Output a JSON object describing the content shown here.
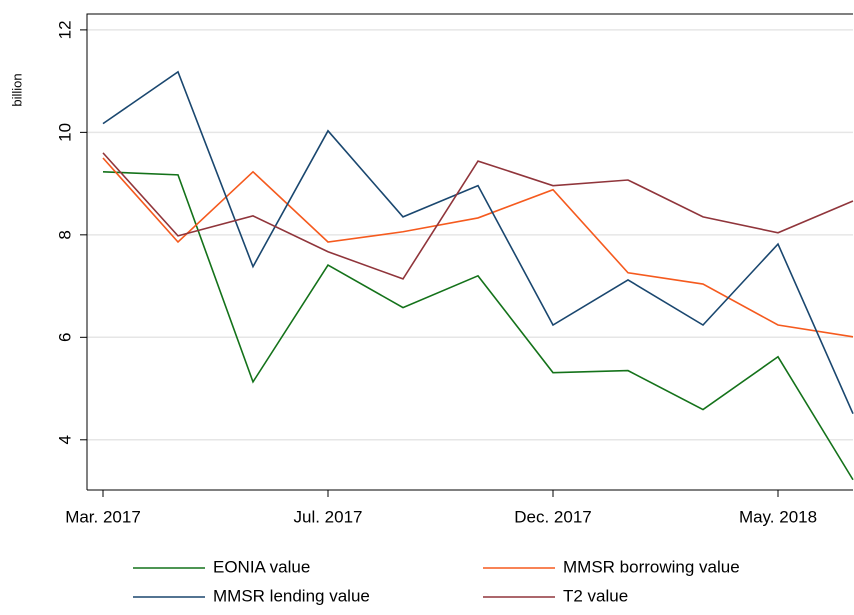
{
  "chart_data": {
    "type": "line",
    "ylabel": "billion",
    "categories": [
      "Mar. 2017",
      null,
      null,
      "Jul. 2017",
      null,
      null,
      "Dec. 2017",
      null,
      null,
      "May. 2018",
      null
    ],
    "series": [
      {
        "name": "EONIA value",
        "color": "#14721a",
        "values": [
          9.23,
          9.17,
          5.13,
          7.41,
          6.58,
          7.2,
          5.31,
          5.35,
          4.59,
          5.62,
          3.22
        ]
      },
      {
        "name": "MMSR borrowing value",
        "color": "#f55a1e",
        "values": [
          9.5,
          7.86,
          9.23,
          7.86,
          8.06,
          8.33,
          8.88,
          7.26,
          7.04,
          6.24,
          6.01
        ]
      },
      {
        "name": "MMSR lending value",
        "color": "#1a476f",
        "values": [
          10.17,
          11.18,
          7.38,
          10.03,
          8.35,
          8.96,
          6.24,
          7.12,
          6.24,
          7.82,
          4.51
        ]
      },
      {
        "name": "T2 value",
        "color": "#90353b",
        "values": [
          9.6,
          7.98,
          8.37,
          7.67,
          7.14,
          9.44,
          8.96,
          9.07,
          8.35,
          8.04,
          8.66
        ]
      }
    ],
    "ylim": [
      3.02,
      12.31
    ],
    "yticks": [
      4,
      6,
      8,
      10,
      12
    ],
    "grid": true,
    "legend": "bottom"
  }
}
